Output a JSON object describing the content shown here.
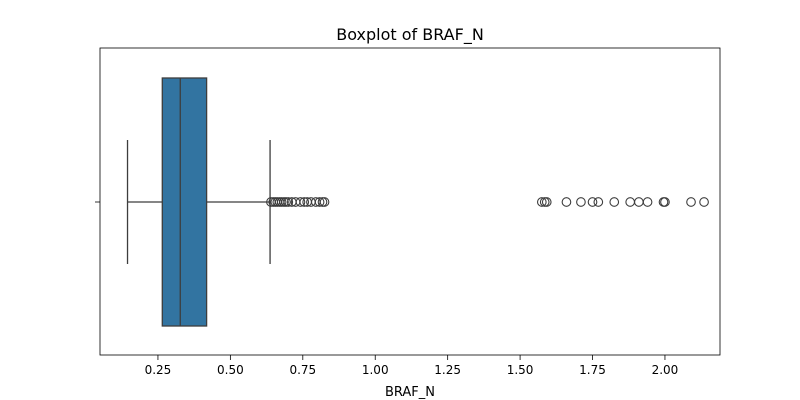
{
  "chart_data": {
    "type": "boxplot",
    "title": "Boxplot of BRAF_N",
    "xlabel": "BRAF_N",
    "ylabel": "",
    "xlim": [
      0.05,
      2.19
    ],
    "xticks": [
      0.25,
      0.5,
      0.75,
      1.0,
      1.25,
      1.5,
      1.75,
      2.0
    ],
    "xtick_labels": [
      "0.25",
      "0.50",
      "0.75",
      "1.00",
      "1.25",
      "1.50",
      "1.75",
      "2.00"
    ],
    "grid": false,
    "box": {
      "q1": 0.265,
      "median": 0.327,
      "q3": 0.418,
      "whisker_low": 0.145,
      "whisker_high": 0.637,
      "color": "#3274a1"
    },
    "outliers": [
      0.64,
      0.648,
      0.655,
      0.662,
      0.67,
      0.677,
      0.685,
      0.692,
      0.7,
      0.712,
      0.725,
      0.742,
      0.755,
      0.765,
      0.778,
      0.795,
      0.808,
      0.818,
      0.825,
      1.575,
      1.585,
      1.592,
      1.66,
      1.71,
      1.75,
      1.77,
      1.825,
      1.88,
      1.91,
      1.94,
      1.995,
      2.0,
      2.09,
      2.135
    ],
    "legend": null
  }
}
